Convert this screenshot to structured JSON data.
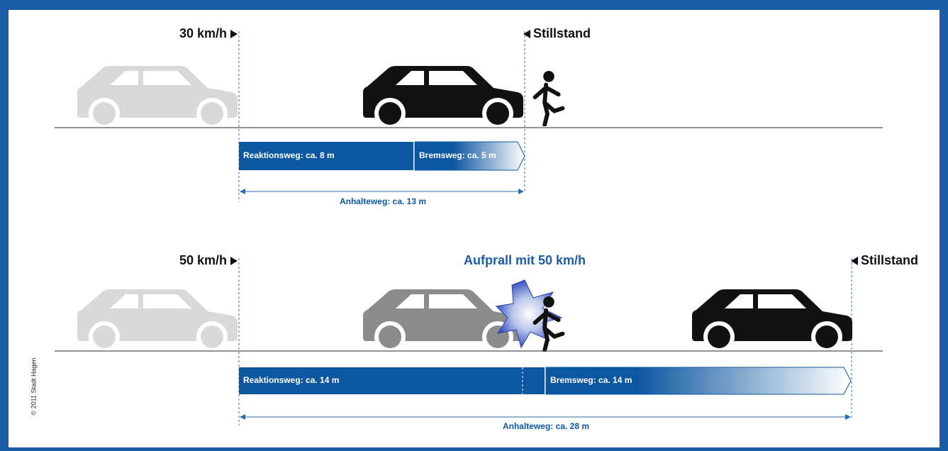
{
  "scenario_1": {
    "speed": "30 km/h",
    "stop": "Stillstand",
    "reaction": "Reaktionsweg: ca. 8 m",
    "braking": "Bremsweg: ca. 5 m",
    "total": "Anhalteweg: ca. 13 m"
  },
  "scenario_2": {
    "speed": "50 km/h",
    "impact": "Aufprall mit 50 km/h",
    "stop": "Stillstand",
    "reaction": "Reaktionsweg: ca. 14 m",
    "braking": "Bremsweg: ca. 14 m",
    "total": "Anhalteweg: ca. 28 m"
  },
  "copyright": "© 2011 Stadt Hagen"
}
